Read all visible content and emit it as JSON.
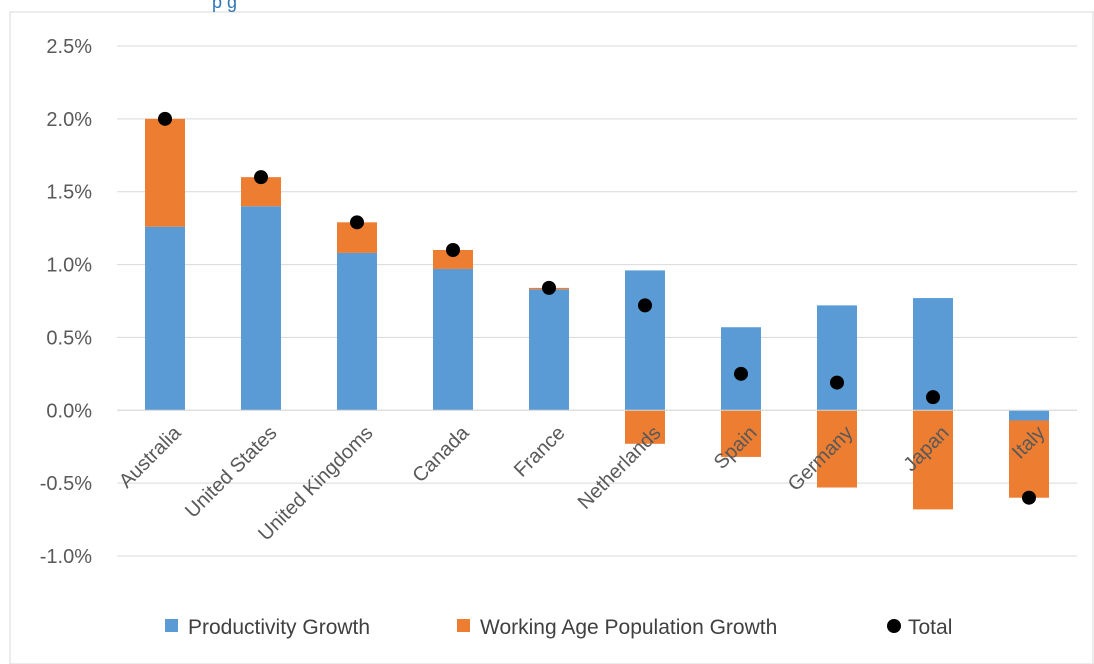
{
  "header_fragment": "p      g",
  "chart_data": {
    "type": "bar",
    "stacked": true,
    "categories": [
      "Australia",
      "United States",
      "United Kingdoms",
      "Canada",
      "France",
      "Netherlands",
      "Spain",
      "Germany",
      "Japan",
      "Italy"
    ],
    "series": [
      {
        "name": "Productivity Growth",
        "kind": "bar",
        "color": "#5B9BD5",
        "values": [
          1.26,
          1.4,
          1.08,
          0.97,
          0.83,
          0.96,
          0.57,
          0.72,
          0.77,
          -0.07
        ]
      },
      {
        "name": "Working Age Population Growth",
        "kind": "bar",
        "color": "#ED7D31",
        "values": [
          0.74,
          0.2,
          0.21,
          0.13,
          0.01,
          -0.23,
          -0.32,
          -0.53,
          -0.68,
          -0.53
        ]
      },
      {
        "name": "Total",
        "kind": "marker",
        "color": "#000000",
        "values": [
          2.0,
          1.6,
          1.29,
          1.1,
          0.84,
          0.72,
          0.25,
          0.19,
          0.09,
          -0.6
        ]
      }
    ],
    "y_tick_labels": [
      "2.5%",
      "2.0%",
      "1.5%",
      "1.0%",
      "0.5%",
      "0.0%",
      "-0.5%",
      "-1.0%"
    ],
    "ylim": [
      -1.0,
      2.5
    ],
    "y_ticks": [
      2.5,
      2.0,
      1.5,
      1.0,
      0.5,
      0.0,
      -0.5,
      -1.0
    ],
    "grid": true,
    "legend_position": "bottom",
    "legend_labels": [
      "Productivity Growth",
      "Working Age Population Growth",
      "Total"
    ]
  }
}
